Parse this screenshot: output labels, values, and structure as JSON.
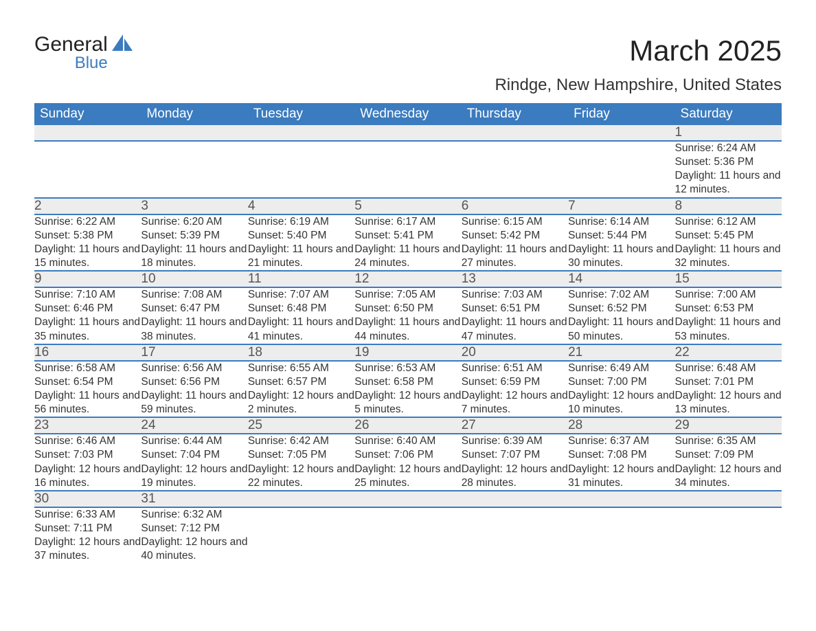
{
  "logo": {
    "name": "General",
    "sub": "Blue",
    "brand_color": "#3b7bbf"
  },
  "title": "March 2025",
  "location": "Rindge, New Hampshire, United States",
  "colors": {
    "header_bg": "#3b7bbf",
    "header_text": "#ffffff",
    "daynum_bg": "#ededed",
    "daynum_text": "#555555",
    "body_text": "#333333",
    "border": "#3b7bbf"
  },
  "typography": {
    "title_fontsize": 42,
    "location_fontsize": 24,
    "header_fontsize": 19,
    "daynum_fontsize": 19,
    "detail_fontsize": 15.5
  },
  "weekdays": [
    "Sunday",
    "Monday",
    "Tuesday",
    "Wednesday",
    "Thursday",
    "Friday",
    "Saturday"
  ],
  "weeks": [
    [
      null,
      null,
      null,
      null,
      null,
      null,
      {
        "day": "1",
        "sunrise": "6:24 AM",
        "sunset": "5:36 PM",
        "daylight": "11 hours and 12 minutes."
      }
    ],
    [
      {
        "day": "2",
        "sunrise": "6:22 AM",
        "sunset": "5:38 PM",
        "daylight": "11 hours and 15 minutes."
      },
      {
        "day": "3",
        "sunrise": "6:20 AM",
        "sunset": "5:39 PM",
        "daylight": "11 hours and 18 minutes."
      },
      {
        "day": "4",
        "sunrise": "6:19 AM",
        "sunset": "5:40 PM",
        "daylight": "11 hours and 21 minutes."
      },
      {
        "day": "5",
        "sunrise": "6:17 AM",
        "sunset": "5:41 PM",
        "daylight": "11 hours and 24 minutes."
      },
      {
        "day": "6",
        "sunrise": "6:15 AM",
        "sunset": "5:42 PM",
        "daylight": "11 hours and 27 minutes."
      },
      {
        "day": "7",
        "sunrise": "6:14 AM",
        "sunset": "5:44 PM",
        "daylight": "11 hours and 30 minutes."
      },
      {
        "day": "8",
        "sunrise": "6:12 AM",
        "sunset": "5:45 PM",
        "daylight": "11 hours and 32 minutes."
      }
    ],
    [
      {
        "day": "9",
        "sunrise": "7:10 AM",
        "sunset": "6:46 PM",
        "daylight": "11 hours and 35 minutes."
      },
      {
        "day": "10",
        "sunrise": "7:08 AM",
        "sunset": "6:47 PM",
        "daylight": "11 hours and 38 minutes."
      },
      {
        "day": "11",
        "sunrise": "7:07 AM",
        "sunset": "6:48 PM",
        "daylight": "11 hours and 41 minutes."
      },
      {
        "day": "12",
        "sunrise": "7:05 AM",
        "sunset": "6:50 PM",
        "daylight": "11 hours and 44 minutes."
      },
      {
        "day": "13",
        "sunrise": "7:03 AM",
        "sunset": "6:51 PM",
        "daylight": "11 hours and 47 minutes."
      },
      {
        "day": "14",
        "sunrise": "7:02 AM",
        "sunset": "6:52 PM",
        "daylight": "11 hours and 50 minutes."
      },
      {
        "day": "15",
        "sunrise": "7:00 AM",
        "sunset": "6:53 PM",
        "daylight": "11 hours and 53 minutes."
      }
    ],
    [
      {
        "day": "16",
        "sunrise": "6:58 AM",
        "sunset": "6:54 PM",
        "daylight": "11 hours and 56 minutes."
      },
      {
        "day": "17",
        "sunrise": "6:56 AM",
        "sunset": "6:56 PM",
        "daylight": "11 hours and 59 minutes."
      },
      {
        "day": "18",
        "sunrise": "6:55 AM",
        "sunset": "6:57 PM",
        "daylight": "12 hours and 2 minutes."
      },
      {
        "day": "19",
        "sunrise": "6:53 AM",
        "sunset": "6:58 PM",
        "daylight": "12 hours and 5 minutes."
      },
      {
        "day": "20",
        "sunrise": "6:51 AM",
        "sunset": "6:59 PM",
        "daylight": "12 hours and 7 minutes."
      },
      {
        "day": "21",
        "sunrise": "6:49 AM",
        "sunset": "7:00 PM",
        "daylight": "12 hours and 10 minutes."
      },
      {
        "day": "22",
        "sunrise": "6:48 AM",
        "sunset": "7:01 PM",
        "daylight": "12 hours and 13 minutes."
      }
    ],
    [
      {
        "day": "23",
        "sunrise": "6:46 AM",
        "sunset": "7:03 PM",
        "daylight": "12 hours and 16 minutes."
      },
      {
        "day": "24",
        "sunrise": "6:44 AM",
        "sunset": "7:04 PM",
        "daylight": "12 hours and 19 minutes."
      },
      {
        "day": "25",
        "sunrise": "6:42 AM",
        "sunset": "7:05 PM",
        "daylight": "12 hours and 22 minutes."
      },
      {
        "day": "26",
        "sunrise": "6:40 AM",
        "sunset": "7:06 PM",
        "daylight": "12 hours and 25 minutes."
      },
      {
        "day": "27",
        "sunrise": "6:39 AM",
        "sunset": "7:07 PM",
        "daylight": "12 hours and 28 minutes."
      },
      {
        "day": "28",
        "sunrise": "6:37 AM",
        "sunset": "7:08 PM",
        "daylight": "12 hours and 31 minutes."
      },
      {
        "day": "29",
        "sunrise": "6:35 AM",
        "sunset": "7:09 PM",
        "daylight": "12 hours and 34 minutes."
      }
    ],
    [
      {
        "day": "30",
        "sunrise": "6:33 AM",
        "sunset": "7:11 PM",
        "daylight": "12 hours and 37 minutes."
      },
      {
        "day": "31",
        "sunrise": "6:32 AM",
        "sunset": "7:12 PM",
        "daylight": "12 hours and 40 minutes."
      },
      null,
      null,
      null,
      null,
      null
    ]
  ],
  "labels": {
    "sunrise_prefix": "Sunrise: ",
    "sunset_prefix": "Sunset: ",
    "daylight_prefix": "Daylight: "
  }
}
